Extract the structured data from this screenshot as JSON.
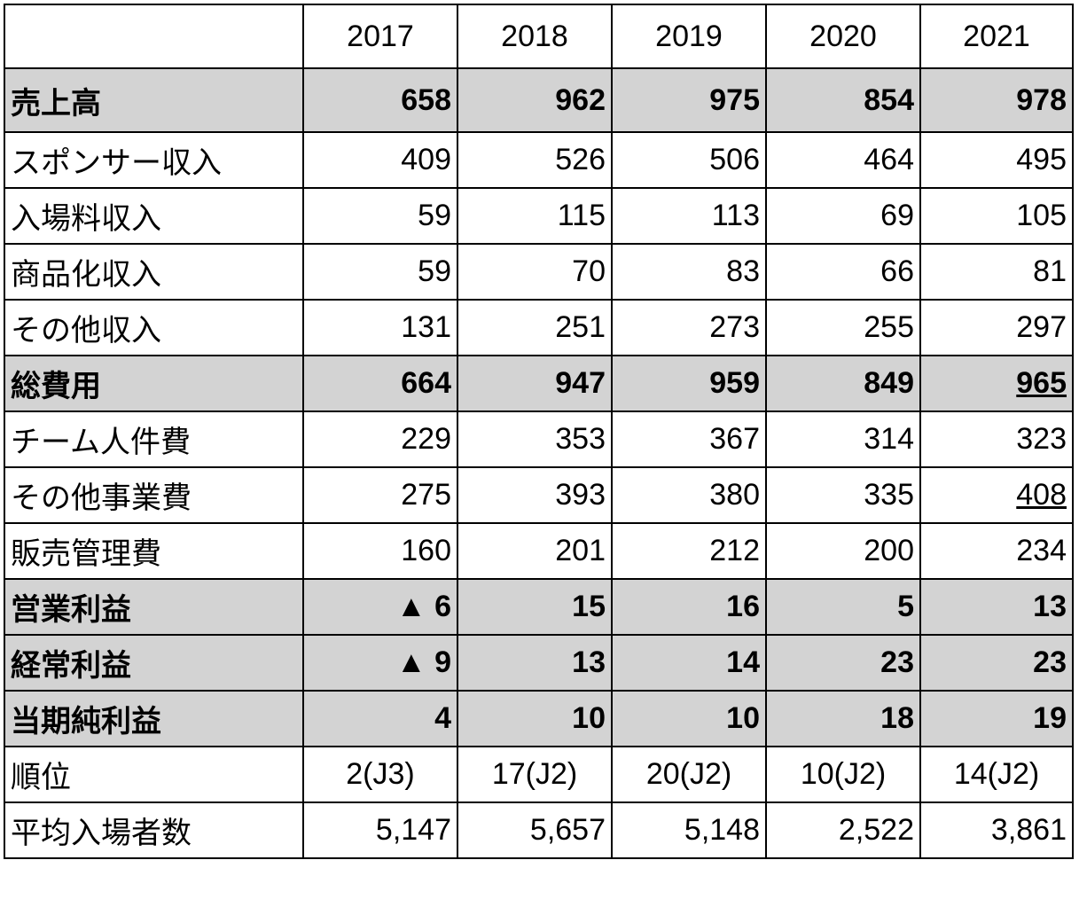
{
  "header": {
    "corner": "",
    "years": [
      "2017",
      "2018",
      "2019",
      "2020",
      "2021"
    ]
  },
  "rows": [
    {
      "label": "売上高",
      "bold": true,
      "values": [
        "658",
        "962",
        "975",
        "854",
        "978"
      ]
    },
    {
      "label": "スポンサー収入",
      "bold": false,
      "values": [
        "409",
        "526",
        "506",
        "464",
        "495"
      ]
    },
    {
      "label": "入場料収入",
      "bold": false,
      "values": [
        "59",
        "115",
        "113",
        "69",
        "105"
      ]
    },
    {
      "label": "商品化収入",
      "bold": false,
      "values": [
        "59",
        "70",
        "83",
        "66",
        "81"
      ]
    },
    {
      "label": "その他収入",
      "bold": false,
      "values": [
        "131",
        "251",
        "273",
        "255",
        "297"
      ]
    },
    {
      "label": "総費用",
      "bold": true,
      "values": [
        "664",
        "947",
        "959",
        "849",
        "965"
      ],
      "underlined": [
        4
      ]
    },
    {
      "label": "チーム人件費",
      "bold": false,
      "values": [
        "229",
        "353",
        "367",
        "314",
        "323"
      ]
    },
    {
      "label": "その他事業費",
      "bold": false,
      "values": [
        "275",
        "393",
        "380",
        "335",
        "408"
      ],
      "underlined": [
        4
      ]
    },
    {
      "label": "販売管理費",
      "bold": false,
      "values": [
        "160",
        "201",
        "212",
        "200",
        "234"
      ]
    },
    {
      "label": "営業利益",
      "bold": true,
      "values": [
        "▲ 6",
        "15",
        "16",
        "5",
        "13"
      ]
    },
    {
      "label": "経常利益",
      "bold": true,
      "values": [
        "▲ 9",
        "13",
        "14",
        "23",
        "23"
      ]
    },
    {
      "label": "当期純利益",
      "bold": true,
      "values": [
        "4",
        "10",
        "10",
        "18",
        "19"
      ]
    },
    {
      "label": "順位",
      "bold": false,
      "values": [
        "2(J3)",
        "17(J2)",
        "20(J2)",
        "10(J2)",
        "14(J2)"
      ]
    },
    {
      "label": "平均入場者数",
      "bold": false,
      "values": [
        "5,147",
        "5,657",
        "5,148",
        "2,522",
        "3,861"
      ]
    }
  ],
  "colors": {
    "highlight_row_bg": "#d3d3d3",
    "border": "#000000"
  }
}
